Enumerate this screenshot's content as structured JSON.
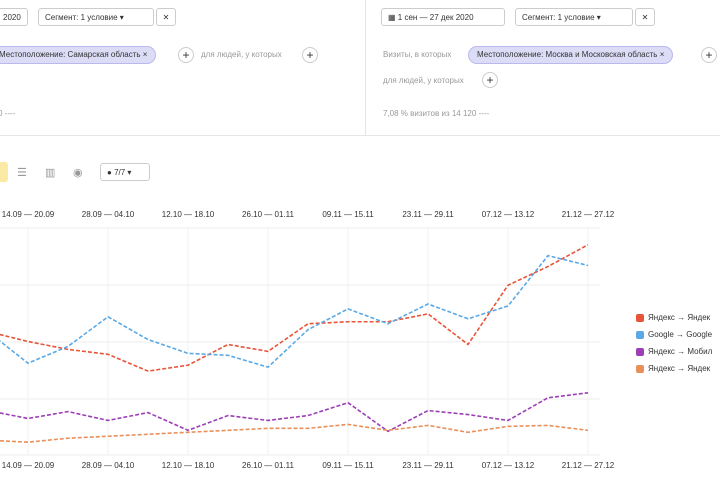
{
  "left_panel": {
    "date": "2020",
    "segment": "Сегмент: 1 условие",
    "condition": "Местоположение: Самарская область",
    "people": "для людей, у которых",
    "summary": "0"
  },
  "right_panel": {
    "date": "1 сен — 27 дек 2020",
    "segment": "Сегмент: 1 условие",
    "visits_label": "Визиты, в которых",
    "condition": "Местоположение: Москва и Московская область",
    "people": "для людей, у которых",
    "summary": "7,08 % визитов из 14 120"
  },
  "toolbar": {
    "series_count": "7/7"
  },
  "chart": {
    "type": "line",
    "categories": [
      null,
      "14.09 — 20.09",
      null,
      "28.09 — 04.10",
      null,
      "12.10 — 18.10",
      null,
      "26.10 — 01.11",
      null,
      "09.11 — 15.11",
      null,
      "23.11 — 29.11",
      null,
      "07.12 — 13.12",
      null,
      "21.12 — 27.12"
    ],
    "ylim": [
      0,
      230
    ],
    "series": [
      {
        "name": "Яндекс → Яндек",
        "color": "#e8543a",
        "values": [
          125,
          115,
          107,
          102,
          85,
          91,
          112,
          105,
          133,
          135,
          135,
          143,
          112,
          172,
          191,
          213
        ]
      },
      {
        "name": "Google → Google",
        "color": "#5aa9e6",
        "values": [
          125,
          93,
          110,
          140,
          117,
          103,
          101,
          89,
          127,
          148,
          133,
          153,
          138,
          151,
          202,
          192
        ]
      },
      {
        "name": "Яндекс → Мобил",
        "color": "#9b3fb5",
        "values": [
          45,
          37,
          44,
          35,
          43,
          25,
          40,
          35,
          40,
          53,
          24,
          45,
          41,
          35,
          58,
          63
        ]
      },
      {
        "name": "Яндекс → Яндек",
        "color": "#e8905a",
        "values": [
          15,
          13,
          17,
          19,
          21,
          23,
          25,
          27,
          27,
          31,
          25,
          30,
          23,
          29,
          30,
          25
        ]
      }
    ]
  }
}
